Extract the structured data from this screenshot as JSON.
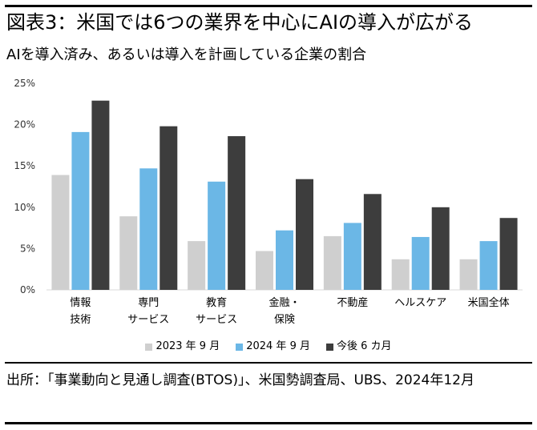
{
  "header": {
    "title": "図表3：米国では6つの業界を中心にAIの導入が広がる",
    "subtitle": "AIを導入済み、あるいは導入を計画している企業の割合"
  },
  "footer": {
    "source": "出所：「事業動向と見通し調査(BTOS)」、米国勢調査局、UBS、2024年12月"
  },
  "colors": {
    "s1": "#cfcfcf",
    "s2": "#6bb7e6",
    "s3": "#3d3d3d"
  },
  "chart_data": {
    "type": "bar",
    "categories": [
      [
        "情報",
        "技術"
      ],
      [
        "専門",
        "サービス"
      ],
      [
        "教育",
        "サービス"
      ],
      [
        "金融・",
        "保険"
      ],
      [
        "不動産"
      ],
      [
        "ヘルスケア"
      ],
      [
        "米国全体"
      ]
    ],
    "series": [
      {
        "name": "2023 年 9 月",
        "values": [
          13.9,
          8.9,
          5.9,
          4.7,
          6.5,
          3.7,
          3.7
        ]
      },
      {
        "name": "2024 年 9 月",
        "values": [
          19.1,
          14.7,
          13.1,
          7.2,
          8.1,
          6.4,
          5.9
        ]
      },
      {
        "name": "今後 6 カ月",
        "values": [
          22.9,
          19.8,
          18.6,
          13.4,
          11.6,
          10.0,
          8.7
        ]
      }
    ],
    "yticks": [
      "0%",
      "5%",
      "10%",
      "15%",
      "20%",
      "25%"
    ],
    "ylim": [
      0,
      25
    ],
    "legend_position": "bottom"
  }
}
